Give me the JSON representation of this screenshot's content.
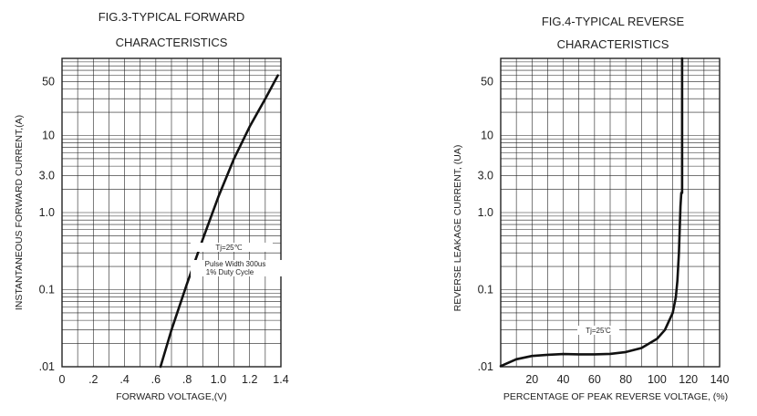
{
  "chart_data": [
    {
      "type": "line",
      "title_line1": "FIG.3-TYPICAL FORWARD",
      "title_line2": "CHARACTERISTICS",
      "xlabel": "FORWARD VOLTAGE,(V)",
      "ylabel": "INSTANTANEOUS FORWARD CURRENT,(A)",
      "x_ticks": [
        "0",
        ".2",
        ".4",
        ".6",
        ".8",
        "1.0",
        "1.2",
        "1.4"
      ],
      "y_ticks": [
        ".01",
        "0.1",
        "1.0",
        "3.0",
        "10",
        "50"
      ],
      "xlim": [
        0,
        1.4
      ],
      "ylim": [
        0.01,
        100
      ],
      "y_scale": "log",
      "grid": true,
      "annotations": [
        "Tj=25℃",
        "Pulse Width 300us",
        "1% Duty Cycle"
      ],
      "series": [
        {
          "x": [
            0.63,
            0.7,
            0.8,
            0.9,
            1.0,
            1.1,
            1.2,
            1.3,
            1.38
          ],
          "y": [
            0.01,
            0.03,
            0.12,
            0.45,
            1.6,
            5.0,
            13,
            30,
            60
          ]
        }
      ]
    },
    {
      "type": "line",
      "title_line1": "FIG.4-TYPICAL REVERSE",
      "title_line2": "CHARACTERISTICS",
      "xlabel": "PERCENTAGE OF PEAK REVERSE VOLTAGE, (%)",
      "ylabel": "REVERSE LEAKAGE CURRENT, (UA)",
      "x_ticks": [
        "20",
        "40",
        "60",
        "80",
        "100",
        "120",
        "140"
      ],
      "y_ticks": [
        ".01",
        "0.1",
        "1.0",
        "3.0",
        "10",
        "50"
      ],
      "xlim": [
        0,
        140
      ],
      "ylim": [
        0.01,
        100
      ],
      "y_scale": "log",
      "grid": true,
      "annotations": [
        "Tj=25'C"
      ],
      "series": [
        {
          "x": [
            0,
            10,
            20,
            30,
            40,
            50,
            60,
            70,
            80,
            90,
            100,
            105,
            110,
            112,
            113,
            114,
            115,
            115.5,
            116,
            116
          ],
          "y": [
            0.0102,
            0.0125,
            0.0138,
            0.0143,
            0.0146,
            0.0145,
            0.0145,
            0.0147,
            0.0155,
            0.0175,
            0.023,
            0.03,
            0.05,
            0.08,
            0.13,
            0.3,
            1.2,
            1.8,
            1.8,
            100
          ]
        }
      ]
    }
  ]
}
